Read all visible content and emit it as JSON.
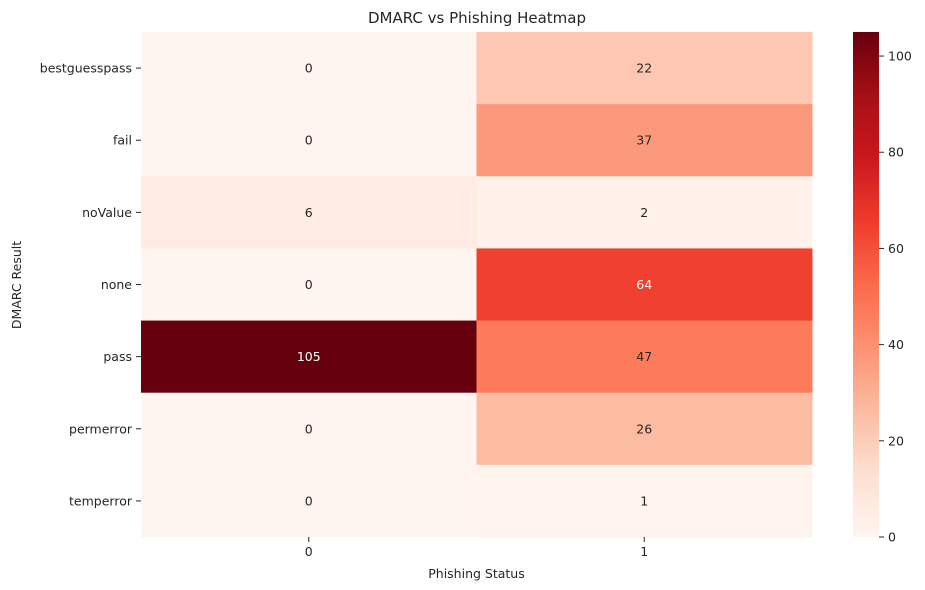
{
  "chart_data": {
    "type": "heatmap",
    "title": "DMARC vs Phishing Heatmap",
    "xlabel": "Phishing Status",
    "ylabel": "DMARC Result",
    "x_categories": [
      "0",
      "1"
    ],
    "y_categories": [
      "bestguesspass",
      "fail",
      "noValue",
      "none",
      "pass",
      "permerror",
      "temperror"
    ],
    "values": [
      [
        0,
        22
      ],
      [
        0,
        37
      ],
      [
        6,
        2
      ],
      [
        0,
        64
      ],
      [
        105,
        47
      ],
      [
        0,
        26
      ],
      [
        0,
        1
      ]
    ],
    "colormap": "Reds",
    "color_range": [
      0,
      105
    ],
    "colorbar_ticks": [
      0,
      20,
      40,
      60,
      80,
      100
    ],
    "annotate": true
  }
}
